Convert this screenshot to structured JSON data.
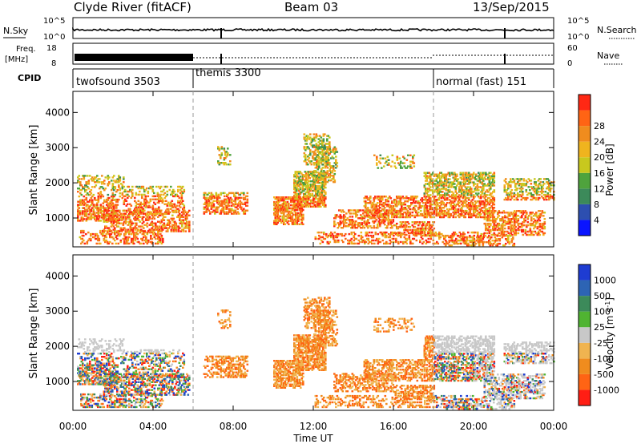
{
  "header": {
    "station": "Clyde River (fitACF)",
    "beam": "Beam 03",
    "date": "13/Sep/2015"
  },
  "nsky_panel": {
    "left_label": "N.Sky",
    "right_label": "N.Search",
    "left_ticks": [
      "10^5",
      "10^0"
    ],
    "right_ticks": [
      "10^5",
      "10^0"
    ]
  },
  "freq_panel": {
    "left_label_line1": "Freq.",
    "left_label_line2": "[MHz]",
    "right_label": "Nave",
    "left_ticks": [
      "18",
      "8"
    ],
    "right_ticks": [
      "60",
      "0"
    ]
  },
  "cpid_panel": {
    "label": "CPID",
    "programs": [
      {
        "name": "twofsound 3503",
        "start_hour": 0
      },
      {
        "name": "themis 3300",
        "start_hour": 6
      },
      {
        "name": "normal (fast) 151",
        "start_hour": 18
      }
    ]
  },
  "colors": {
    "power_scale": [
      "#0a14ff",
      "#2d4fb0",
      "#3c8a5a",
      "#4fa33d",
      "#c8c81e",
      "#f0b41e",
      "#f08c1e",
      "#ff6414",
      "#ff2814"
    ],
    "velocity_scale": [
      "#ff1e14",
      "#ff6414",
      "#f08c1e",
      "#f0b450",
      "#c8c8c8",
      "#50b432",
      "#3c8a5a",
      "#2d64b4",
      "#1e3cd2"
    ]
  },
  "chart_data": [
    {
      "type": "heatmap",
      "title": "",
      "xlabel": "",
      "ylabel": "Slant Range [km]",
      "quantity": "Power [dB]",
      "xlim": [
        0,
        24
      ],
      "ylim": [
        180,
        4600
      ],
      "x_ticks": [
        "00:00",
        "04:00",
        "08:00",
        "12:00",
        "16:00",
        "20:00",
        "00:00"
      ],
      "y_ticks": [
        1000,
        2000,
        3000,
        4000
      ],
      "colorbar_ticks": [
        4,
        8,
        12,
        16,
        20,
        24,
        28
      ],
      "colorbar_label": "Power [dB]",
      "program_boundaries_hour": [
        6,
        18
      ]
    },
    {
      "type": "heatmap",
      "title": "",
      "xlabel": "Time UT",
      "ylabel": "Slant Range [km]",
      "quantity": "Velocity [m s-1]",
      "xlim": [
        0,
        24
      ],
      "ylim": [
        180,
        4600
      ],
      "x_ticks": [
        "00:00",
        "04:00",
        "08:00",
        "12:00",
        "16:00",
        "20:00",
        "00:00"
      ],
      "y_ticks": [
        1000,
        2000,
        3000,
        4000
      ],
      "colorbar_ticks": [
        1000,
        500,
        100,
        25,
        -25,
        -100,
        -500,
        -1000
      ],
      "colorbar_label": "Velocity [m s",
      "colorbar_label_sup": "-1",
      "colorbar_label_end": "]",
      "program_boundaries_hour": [
        6,
        18
      ]
    }
  ]
}
